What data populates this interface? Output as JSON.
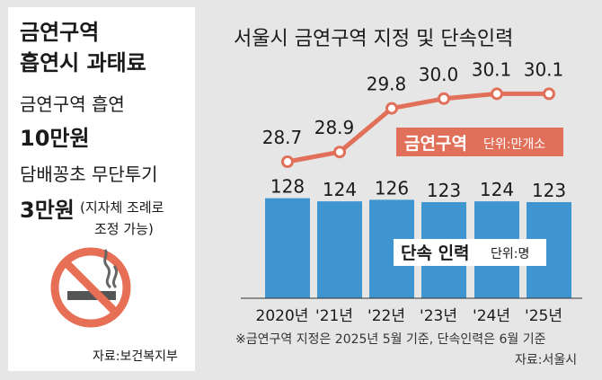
{
  "left_panel": {
    "title_line1": "금연구역",
    "title_line2": "흡연시 과태료",
    "item1_label": "금연구역 흡연",
    "item1_amount": "10만원",
    "item2_label": "담배꽁초 무단투기",
    "item2_amount": "3만원",
    "item2_note_line1": "(지자체 조례로",
    "item2_note_line2": "조정 가능)",
    "icon": "no-smoking-icon",
    "source": "자료:보건복지부"
  },
  "chart_data": {
    "type": "bar+line",
    "title": "서울시 금연구역 지정 및 단속인력",
    "categories": [
      "2020년",
      "'21년",
      "'22년",
      "'23년",
      "'24년",
      "'25년"
    ],
    "series": [
      {
        "name": "금연구역",
        "unit": "단위:만개소",
        "type": "line",
        "values": [
          28.7,
          28.9,
          29.8,
          30.0,
          30.1,
          30.1
        ],
        "labels": [
          "28.7",
          "28.9",
          "29.8",
          "30.0",
          "30.1",
          "30.1"
        ],
        "color": "#e0705a"
      },
      {
        "name": "단속 인력",
        "unit": "단위:명",
        "type": "bar",
        "values": [
          128,
          124,
          126,
          123,
          124,
          123
        ],
        "color": "#3f95cf"
      }
    ],
    "footnote": "※금연구역 지정은 2025년 5월 기준, 단속인력은 6월 기준",
    "source": "자료:서울시"
  },
  "colors": {
    "background": "#e6e6e6",
    "bar": "#3f95cf",
    "line": "#e0705a",
    "text": "#1a1a1a"
  }
}
